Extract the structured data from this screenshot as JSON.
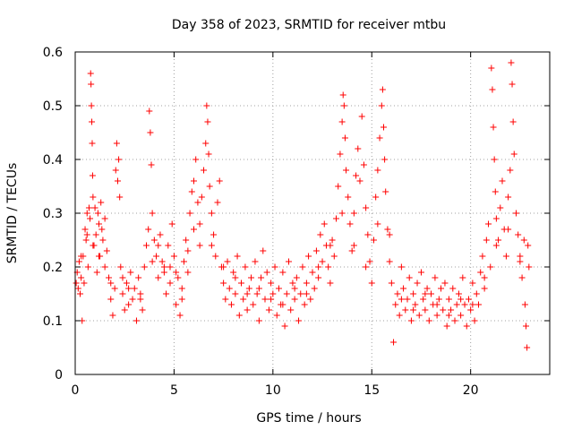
{
  "chart_data": {
    "type": "scatter",
    "title": "Day 358 of 2023, SRMTID for receiver mtbu",
    "xlabel": "GPS time / hours",
    "ylabel": "SRMTID / TECUs",
    "xlim": [
      0,
      24
    ],
    "ylim": [
      0,
      0.6
    ],
    "x_ticks": [
      0,
      5,
      10,
      15,
      20
    ],
    "x_tick_labels": [
      "0",
      "5",
      "10",
      "15",
      "20"
    ],
    "y_ticks": [
      0,
      0.1,
      0.2,
      0.3,
      0.4,
      0.5,
      0.6
    ],
    "y_tick_labels": [
      "0",
      "0.1",
      "0.2",
      "0.3",
      "0.4",
      "0.5",
      "0.6"
    ],
    "grid": true,
    "marker": "plus",
    "color": "#ff0000",
    "series": [
      {
        "name": "SRMTID",
        "points": [
          [
            0.05,
            0.17
          ],
          [
            0.1,
            0.19
          ],
          [
            0.15,
            0.16
          ],
          [
            0.2,
            0.21
          ],
          [
            0.25,
            0.15
          ],
          [
            0.3,
            0.18
          ],
          [
            0.35,
            0.1
          ],
          [
            0.4,
            0.22
          ],
          [
            0.45,
            0.17
          ],
          [
            0.5,
            0.27
          ],
          [
            0.55,
            0.25
          ],
          [
            0.6,
            0.3
          ],
          [
            0.65,
            0.2
          ],
          [
            0.7,
            0.31
          ],
          [
            0.75,
            0.29
          ],
          [
            0.78,
            0.56
          ],
          [
            0.8,
            0.54
          ],
          [
            0.82,
            0.5
          ],
          [
            0.84,
            0.47
          ],
          [
            0.86,
            0.43
          ],
          [
            0.88,
            0.37
          ],
          [
            0.9,
            0.33
          ],
          [
            0.95,
            0.24
          ],
          [
            1.0,
            0.31
          ],
          [
            1.05,
            0.26
          ],
          [
            1.1,
            0.19
          ],
          [
            1.15,
            0.3
          ],
          [
            1.2,
            0.28
          ],
          [
            1.25,
            0.22
          ],
          [
            1.3,
            0.32
          ],
          [
            1.35,
            0.27
          ],
          [
            1.4,
            0.25
          ],
          [
            1.5,
            0.29
          ],
          [
            1.6,
            0.23
          ],
          [
            1.7,
            0.18
          ],
          [
            1.8,
            0.14
          ],
          [
            1.9,
            0.11
          ],
          [
            2.0,
            0.16
          ],
          [
            2.05,
            0.38
          ],
          [
            2.1,
            0.43
          ],
          [
            2.15,
            0.36
          ],
          [
            2.2,
            0.4
          ],
          [
            2.25,
            0.33
          ],
          [
            2.3,
            0.2
          ],
          [
            2.4,
            0.15
          ],
          [
            2.5,
            0.12
          ],
          [
            2.6,
            0.17
          ],
          [
            2.7,
            0.13
          ],
          [
            2.8,
            0.19
          ],
          [
            2.9,
            0.14
          ],
          [
            3.0,
            0.16
          ],
          [
            3.1,
            0.1
          ],
          [
            3.2,
            0.18
          ],
          [
            3.3,
            0.15
          ],
          [
            3.4,
            0.12
          ],
          [
            3.5,
            0.2
          ],
          [
            3.6,
            0.24
          ],
          [
            3.7,
            0.27
          ],
          [
            3.75,
            0.49
          ],
          [
            3.8,
            0.45
          ],
          [
            3.85,
            0.39
          ],
          [
            3.9,
            0.3
          ],
          [
            4.0,
            0.25
          ],
          [
            4.1,
            0.22
          ],
          [
            4.2,
            0.18
          ],
          [
            4.3,
            0.26
          ],
          [
            4.4,
            0.21
          ],
          [
            4.5,
            0.19
          ],
          [
            4.6,
            0.15
          ],
          [
            4.7,
            0.24
          ],
          [
            4.8,
            0.2
          ],
          [
            4.9,
            0.28
          ],
          [
            5.0,
            0.22
          ],
          [
            5.1,
            0.13
          ],
          [
            5.2,
            0.18
          ],
          [
            5.3,
            0.11
          ],
          [
            5.4,
            0.16
          ],
          [
            5.5,
            0.21
          ],
          [
            5.6,
            0.25
          ],
          [
            5.7,
            0.19
          ],
          [
            5.8,
            0.3
          ],
          [
            5.9,
            0.34
          ],
          [
            6.0,
            0.36
          ],
          [
            6.1,
            0.4
          ],
          [
            6.2,
            0.32
          ],
          [
            6.3,
            0.28
          ],
          [
            6.4,
            0.33
          ],
          [
            6.5,
            0.38
          ],
          [
            6.6,
            0.43
          ],
          [
            6.65,
            0.5
          ],
          [
            6.7,
            0.47
          ],
          [
            6.75,
            0.41
          ],
          [
            6.8,
            0.35
          ],
          [
            6.9,
            0.3
          ],
          [
            7.0,
            0.26
          ],
          [
            7.1,
            0.22
          ],
          [
            7.2,
            0.32
          ],
          [
            7.3,
            0.36
          ],
          [
            7.4,
            0.2
          ],
          [
            7.5,
            0.17
          ],
          [
            7.6,
            0.14
          ],
          [
            7.7,
            0.21
          ],
          [
            7.8,
            0.16
          ],
          [
            7.9,
            0.13
          ],
          [
            8.0,
            0.19
          ],
          [
            8.1,
            0.15
          ],
          [
            8.2,
            0.22
          ],
          [
            8.3,
            0.11
          ],
          [
            8.4,
            0.17
          ],
          [
            8.5,
            0.14
          ],
          [
            8.6,
            0.2
          ],
          [
            8.7,
            0.12
          ],
          [
            8.8,
            0.16
          ],
          [
            8.9,
            0.18
          ],
          [
            9.0,
            0.13
          ],
          [
            9.1,
            0.21
          ],
          [
            9.2,
            0.15
          ],
          [
            9.3,
            0.1
          ],
          [
            9.4,
            0.18
          ],
          [
            9.5,
            0.23
          ],
          [
            9.6,
            0.14
          ],
          [
            9.7,
            0.19
          ],
          [
            9.8,
            0.12
          ],
          [
            9.9,
            0.17
          ],
          [
            10.0,
            0.15
          ],
          [
            10.1,
            0.2
          ],
          [
            10.2,
            0.11
          ],
          [
            10.3,
            0.16
          ],
          [
            10.4,
            0.13
          ],
          [
            10.5,
            0.19
          ],
          [
            10.6,
            0.09
          ],
          [
            10.7,
            0.15
          ],
          [
            10.8,
            0.21
          ],
          [
            10.9,
            0.12
          ],
          [
            11.0,
            0.17
          ],
          [
            11.1,
            0.14
          ],
          [
            11.2,
            0.18
          ],
          [
            11.3,
            0.1
          ],
          [
            11.4,
            0.15
          ],
          [
            11.5,
            0.2
          ],
          [
            11.6,
            0.13
          ],
          [
            11.7,
            0.17
          ],
          [
            11.8,
            0.22
          ],
          [
            11.9,
            0.14
          ],
          [
            12.0,
            0.19
          ],
          [
            12.1,
            0.16
          ],
          [
            12.2,
            0.23
          ],
          [
            12.3,
            0.18
          ],
          [
            12.4,
            0.26
          ],
          [
            12.5,
            0.21
          ],
          [
            12.6,
            0.28
          ],
          [
            12.7,
            0.24
          ],
          [
            12.8,
            0.2
          ],
          [
            12.9,
            0.17
          ],
          [
            13.0,
            0.25
          ],
          [
            13.1,
            0.22
          ],
          [
            13.2,
            0.29
          ],
          [
            13.3,
            0.35
          ],
          [
            13.4,
            0.41
          ],
          [
            13.5,
            0.47
          ],
          [
            13.55,
            0.52
          ],
          [
            13.6,
            0.5
          ],
          [
            13.65,
            0.44
          ],
          [
            13.7,
            0.38
          ],
          [
            13.8,
            0.33
          ],
          [
            13.9,
            0.28
          ],
          [
            14.0,
            0.23
          ],
          [
            14.1,
            0.3
          ],
          [
            14.2,
            0.37
          ],
          [
            14.3,
            0.42
          ],
          [
            14.4,
            0.36
          ],
          [
            14.5,
            0.48
          ],
          [
            14.6,
            0.39
          ],
          [
            14.7,
            0.31
          ],
          [
            14.8,
            0.26
          ],
          [
            14.9,
            0.21
          ],
          [
            15.0,
            0.17
          ],
          [
            15.1,
            0.25
          ],
          [
            15.2,
            0.33
          ],
          [
            15.3,
            0.38
          ],
          [
            15.4,
            0.44
          ],
          [
            15.5,
            0.5
          ],
          [
            15.55,
            0.53
          ],
          [
            15.6,
            0.46
          ],
          [
            15.65,
            0.4
          ],
          [
            15.7,
            0.34
          ],
          [
            15.8,
            0.27
          ],
          [
            15.9,
            0.21
          ],
          [
            16.0,
            0.17
          ],
          [
            16.1,
            0.06
          ],
          [
            16.2,
            0.13
          ],
          [
            16.3,
            0.15
          ],
          [
            16.4,
            0.11
          ],
          [
            16.5,
            0.2
          ],
          [
            16.6,
            0.16
          ],
          [
            16.7,
            0.12
          ],
          [
            16.8,
            0.14
          ],
          [
            16.9,
            0.18
          ],
          [
            17.0,
            0.1
          ],
          [
            17.1,
            0.15
          ],
          [
            17.2,
            0.13
          ],
          [
            17.3,
            0.17
          ],
          [
            17.4,
            0.11
          ],
          [
            17.5,
            0.19
          ],
          [
            17.6,
            0.14
          ],
          [
            17.7,
            0.12
          ],
          [
            17.8,
            0.16
          ],
          [
            17.9,
            0.1
          ],
          [
            18.0,
            0.15
          ],
          [
            18.1,
            0.13
          ],
          [
            18.2,
            0.18
          ],
          [
            18.3,
            0.11
          ],
          [
            18.4,
            0.14
          ],
          [
            18.5,
            0.16
          ],
          [
            18.6,
            0.12
          ],
          [
            18.7,
            0.17
          ],
          [
            18.8,
            0.09
          ],
          [
            18.9,
            0.14
          ],
          [
            19.0,
            0.12
          ],
          [
            19.1,
            0.16
          ],
          [
            19.2,
            0.1
          ],
          [
            19.3,
            0.13
          ],
          [
            19.4,
            0.15
          ],
          [
            19.5,
            0.11
          ],
          [
            19.6,
            0.18
          ],
          [
            19.7,
            0.13
          ],
          [
            19.8,
            0.09
          ],
          [
            19.9,
            0.14
          ],
          [
            20.0,
            0.12
          ],
          [
            20.1,
            0.17
          ],
          [
            20.2,
            0.1
          ],
          [
            20.3,
            0.15
          ],
          [
            20.4,
            0.13
          ],
          [
            20.5,
            0.19
          ],
          [
            20.6,
            0.22
          ],
          [
            20.7,
            0.16
          ],
          [
            20.8,
            0.25
          ],
          [
            20.9,
            0.28
          ],
          [
            21.0,
            0.2
          ],
          [
            21.05,
            0.57
          ],
          [
            21.1,
            0.53
          ],
          [
            21.15,
            0.46
          ],
          [
            21.2,
            0.4
          ],
          [
            21.25,
            0.34
          ],
          [
            21.3,
            0.29
          ],
          [
            21.4,
            0.25
          ],
          [
            21.5,
            0.31
          ],
          [
            21.6,
            0.36
          ],
          [
            21.7,
            0.27
          ],
          [
            21.8,
            0.22
          ],
          [
            21.9,
            0.33
          ],
          [
            22.0,
            0.38
          ],
          [
            22.05,
            0.58
          ],
          [
            22.1,
            0.54
          ],
          [
            22.15,
            0.47
          ],
          [
            22.2,
            0.41
          ],
          [
            22.3,
            0.3
          ],
          [
            22.4,
            0.26
          ],
          [
            22.5,
            0.22
          ],
          [
            22.6,
            0.18
          ],
          [
            22.7,
            0.25
          ],
          [
            22.75,
            0.13
          ],
          [
            22.8,
            0.09
          ],
          [
            22.85,
            0.05
          ],
          [
            22.9,
            0.24
          ],
          [
            22.95,
            0.2
          ],
          [
            0.3,
            0.22
          ],
          [
            0.6,
            0.26
          ],
          [
            0.9,
            0.24
          ],
          [
            1.2,
            0.22
          ],
          [
            1.5,
            0.2
          ],
          [
            1.8,
            0.17
          ],
          [
            2.4,
            0.18
          ],
          [
            2.7,
            0.16
          ],
          [
            3.3,
            0.14
          ],
          [
            3.9,
            0.21
          ],
          [
            4.2,
            0.24
          ],
          [
            4.5,
            0.2
          ],
          [
            4.8,
            0.17
          ],
          [
            5.1,
            0.19
          ],
          [
            5.4,
            0.14
          ],
          [
            5.7,
            0.23
          ],
          [
            6.0,
            0.27
          ],
          [
            6.3,
            0.24
          ],
          [
            6.9,
            0.24
          ],
          [
            7.5,
            0.2
          ],
          [
            8.1,
            0.18
          ],
          [
            8.7,
            0.15
          ],
          [
            9.3,
            0.16
          ],
          [
            9.9,
            0.14
          ],
          [
            10.5,
            0.13
          ],
          [
            11.1,
            0.16
          ],
          [
            11.7,
            0.15
          ],
          [
            12.3,
            0.2
          ],
          [
            12.9,
            0.24
          ],
          [
            13.5,
            0.3
          ],
          [
            14.1,
            0.24
          ],
          [
            14.7,
            0.2
          ],
          [
            15.3,
            0.28
          ],
          [
            15.9,
            0.26
          ],
          [
            16.5,
            0.14
          ],
          [
            17.1,
            0.12
          ],
          [
            17.7,
            0.15
          ],
          [
            18.3,
            0.13
          ],
          [
            18.9,
            0.11
          ],
          [
            19.5,
            0.14
          ],
          [
            20.1,
            0.13
          ],
          [
            20.7,
            0.18
          ],
          [
            21.3,
            0.24
          ],
          [
            21.9,
            0.27
          ],
          [
            22.5,
            0.21
          ]
        ]
      }
    ]
  }
}
